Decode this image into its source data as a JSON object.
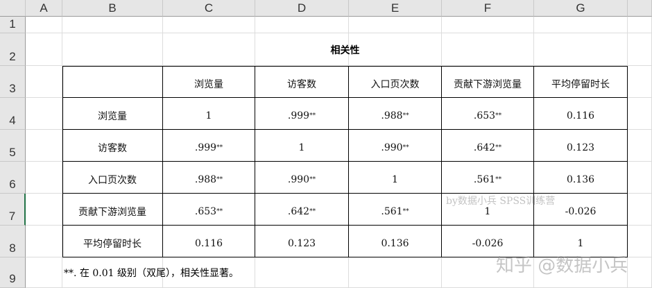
{
  "columns": [
    "A",
    "B",
    "C",
    "D",
    "E",
    "F",
    "G"
  ],
  "rows": [
    "1",
    "2",
    "3",
    "4",
    "5",
    "6",
    "7",
    "8",
    "9"
  ],
  "title": "相关性",
  "table": {
    "headers": [
      "",
      "浏览量",
      "访客数",
      "入口页次数",
      "贡献下游浏览量",
      "平均停留时长"
    ],
    "body": [
      [
        {
          "v": "浏览量"
        },
        {
          "v": "1"
        },
        {
          "v": ".999",
          "s": "**"
        },
        {
          "v": ".988",
          "s": "**"
        },
        {
          "v": ".653",
          "s": "**"
        },
        {
          "v": "0.116"
        }
      ],
      [
        {
          "v": "访客数"
        },
        {
          "v": ".999",
          "s": "**"
        },
        {
          "v": "1"
        },
        {
          "v": ".990",
          "s": "**"
        },
        {
          "v": ".642",
          "s": "**"
        },
        {
          "v": "0.123"
        }
      ],
      [
        {
          "v": "入口页次数"
        },
        {
          "v": ".988",
          "s": "**"
        },
        {
          "v": ".990",
          "s": "**"
        },
        {
          "v": "1"
        },
        {
          "v": ".561",
          "s": "**"
        },
        {
          "v": "0.136"
        }
      ],
      [
        {
          "v": "贡献下游浏览量"
        },
        {
          "v": ".653",
          "s": "**"
        },
        {
          "v": ".642",
          "s": "**"
        },
        {
          "v": ".561",
          "s": "**"
        },
        {
          "v": "1"
        },
        {
          "v": "-0.026"
        }
      ],
      [
        {
          "v": "平均停留时长"
        },
        {
          "v": "0.116"
        },
        {
          "v": "0.123"
        },
        {
          "v": "0.136"
        },
        {
          "v": "-0.026"
        },
        {
          "v": "1"
        }
      ]
    ]
  },
  "footnote": "**. 在 0.01 级别（双尾），相关性显著。",
  "watermarks": [
    "by数据小兵 SPSS训练营",
    "知乎 @数据小兵"
  ]
}
